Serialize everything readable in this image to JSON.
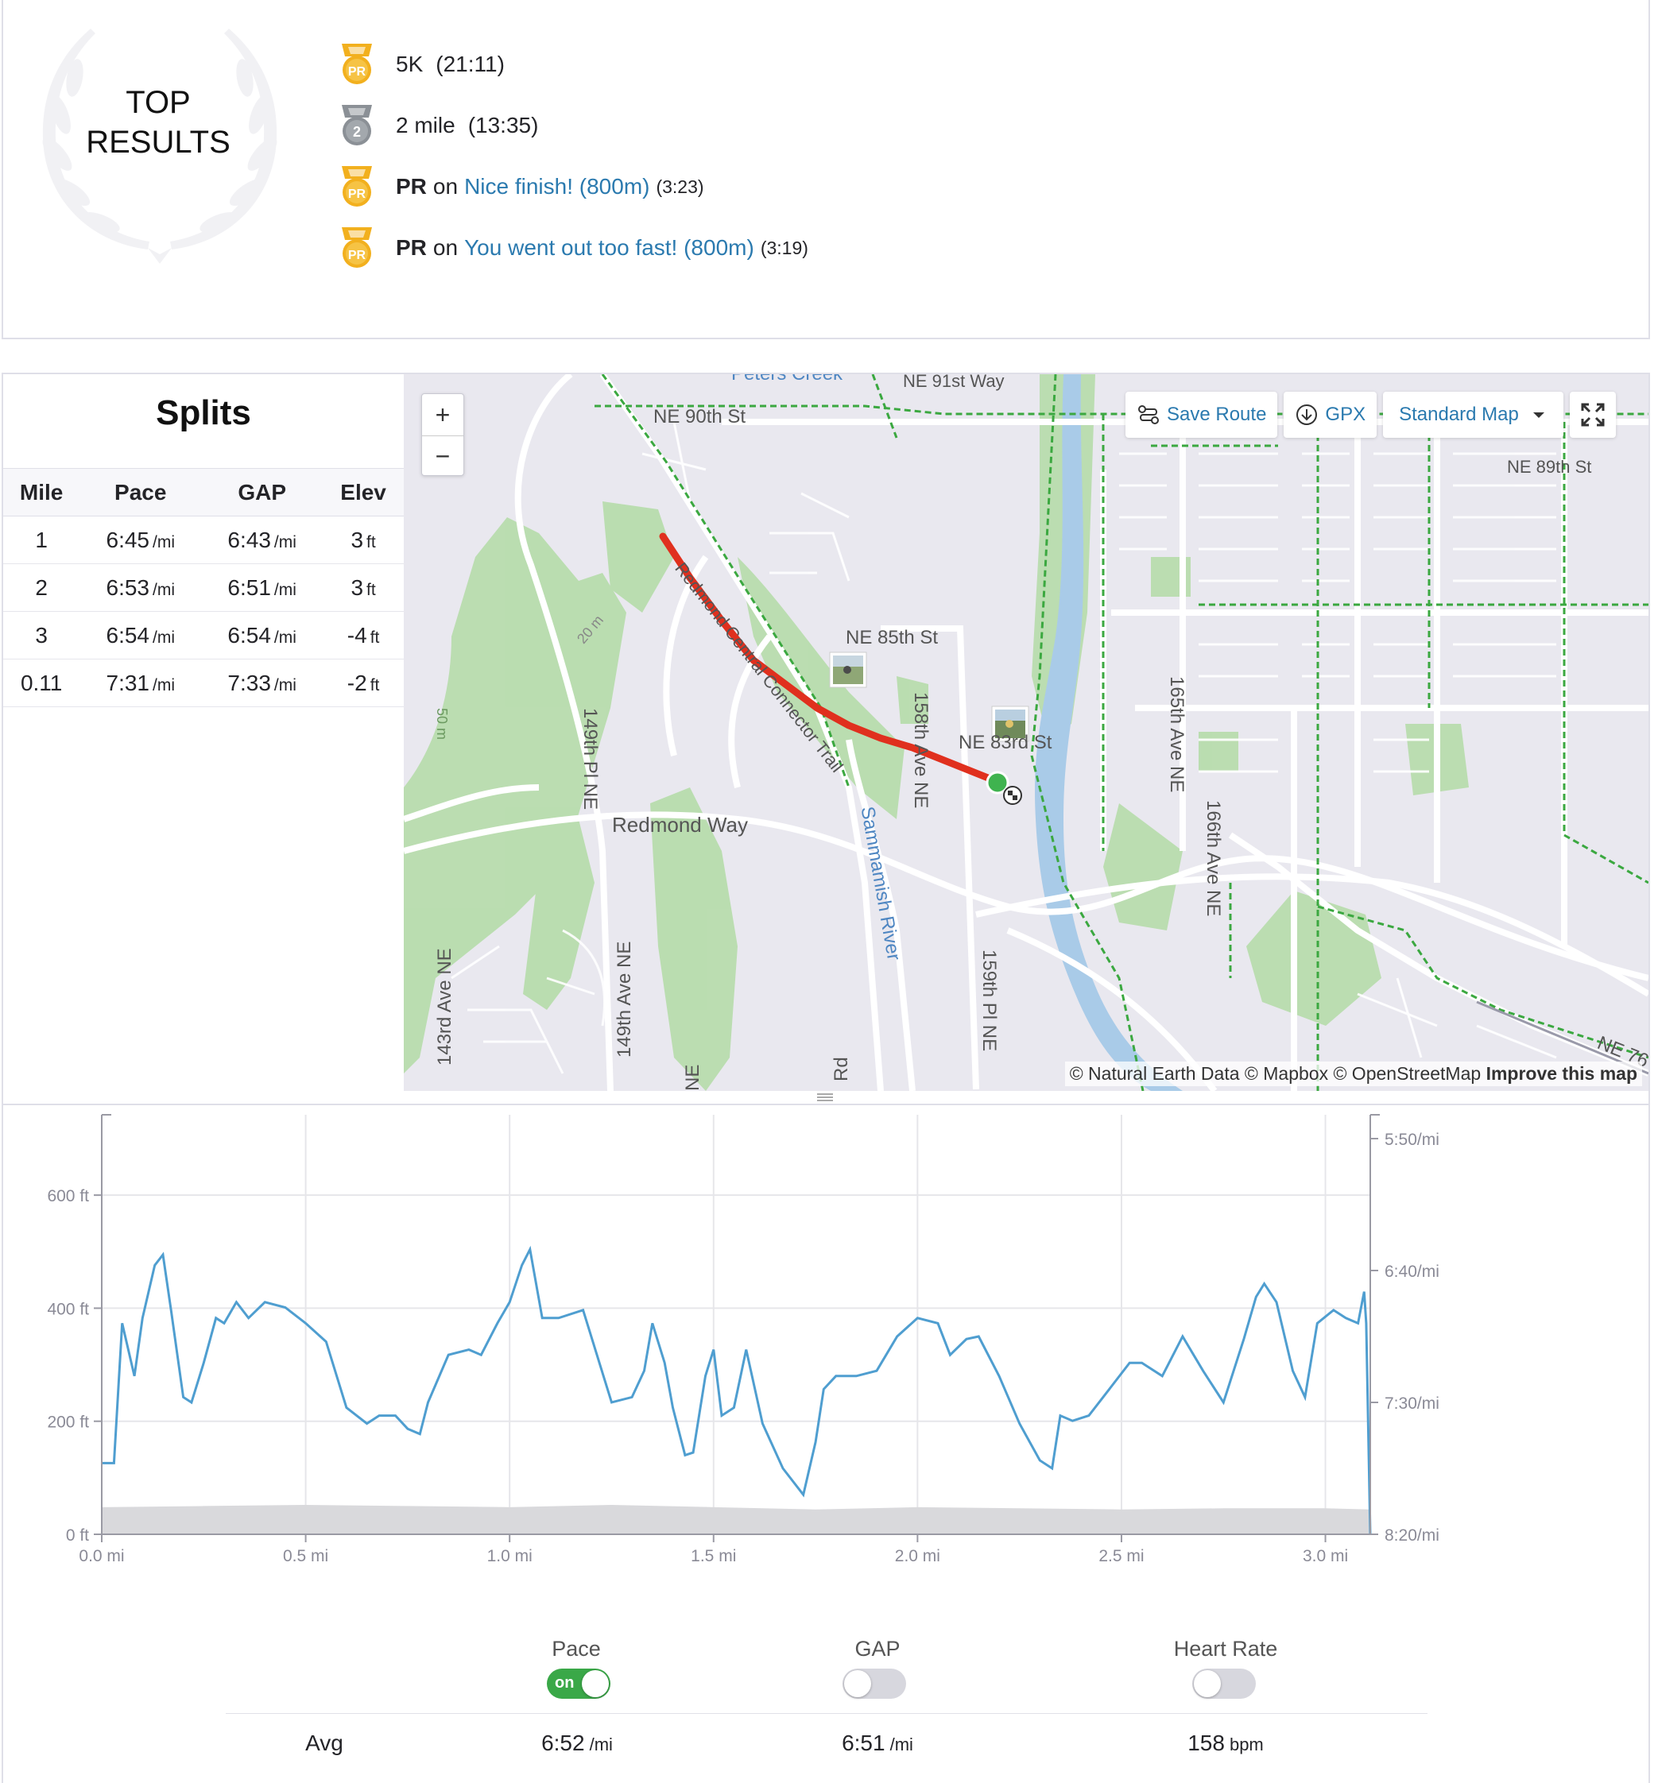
{
  "top_results": {
    "title_line1": "TOP",
    "title_line2": "RESULTS",
    "items": [
      {
        "medal": "pr-medal-icon",
        "name": "5K",
        "time": "(21:11)"
      },
      {
        "medal": "second-place-medal-icon",
        "name": "2 mile",
        "time": "(13:35)"
      },
      {
        "medal": "pr-medal-icon",
        "prefix": "PR",
        "on": "on",
        "segment": "Nice finish! (800m)",
        "time": "(3:23)"
      },
      {
        "medal": "pr-medal-icon",
        "prefix": "PR",
        "on": "on",
        "segment": "You went out too fast! (800m)",
        "time": "(3:19)"
      }
    ],
    "medal_text_pr": "PR",
    "medal_text_second": "2",
    "colors": {
      "pr_medal": "#f2b01e",
      "second_medal": "#8b9096",
      "link": "#2b7aaf"
    }
  },
  "splits": {
    "title": "Splits",
    "columns": [
      "Mile",
      "Pace",
      "GAP",
      "Elev"
    ],
    "rows": [
      {
        "mile": "1",
        "pace": "6:45",
        "pace_unit": "/mi",
        "gap": "6:43",
        "gap_unit": "/mi",
        "elev": "3",
        "elev_unit": "ft"
      },
      {
        "mile": "2",
        "pace": "6:53",
        "pace_unit": "/mi",
        "gap": "6:51",
        "gap_unit": "/mi",
        "elev": "3",
        "elev_unit": "ft"
      },
      {
        "mile": "3",
        "pace": "6:54",
        "pace_unit": "/mi",
        "gap": "6:54",
        "gap_unit": "/mi",
        "elev": "-4",
        "elev_unit": "ft"
      },
      {
        "mile": "0.11",
        "pace": "7:31",
        "pace_unit": "/mi",
        "gap": "7:33",
        "gap_unit": "/mi",
        "elev": "-2",
        "elev_unit": "ft"
      }
    ]
  },
  "map": {
    "zoom_in": "+",
    "zoom_out": "−",
    "save_route": "Save Route",
    "gpx": "GPX",
    "map_type": "Standard Map",
    "attribution": "© Natural Earth Data © Mapbox © OpenStreetMap",
    "improve": "Improve this map",
    "labels": {
      "ne90": "NE 90th St",
      "ne91": "NE 91st Way",
      "ne90b": "NE 90th St",
      "ne89": "NE 89th St",
      "ne85": "NE 85th St",
      "ne83": "NE 83rd St",
      "redmond": "Redmond Way",
      "pl149": "149th Pl NE",
      "ave158": "158th Ave NE",
      "ave165": "165th Ave NE",
      "ave166": "166th Ave NE",
      "ave143": "143rd Ave NE",
      "ave149": "149th Ave NE",
      "pl159": "159th Pl NE",
      "river": "Sammamish River",
      "trail": "Redmond Central Connector Trail",
      "ne76": "NE 76",
      "m50": "50 m",
      "m20": "20 m",
      "ne_stub": "NE",
      "rd_stub": "Rd",
      "creek": "Peters Creek"
    },
    "route_color": "#e0301e"
  },
  "chart": {
    "left_axis_ticks": [
      "600 ft",
      "400 ft",
      "200 ft",
      "0 ft"
    ],
    "right_axis_ticks": [
      "5:50/mi",
      "6:40/mi",
      "7:30/mi",
      "8:20/mi"
    ],
    "x_axis_ticks": [
      "0.0 mi",
      "0.5 mi",
      "1.0 mi",
      "1.5 mi",
      "2.0 mi",
      "2.5 mi",
      "3.0 mi"
    ],
    "pace_color": "#4f9ed0",
    "elevation_color": "#d9d9dc"
  },
  "chart_data": {
    "type": "line",
    "x_unit": "mi",
    "xlim": [
      0.0,
      3.11
    ],
    "ylim_elevation": [
      0,
      700
    ],
    "ylim_pace_sec_per_mi": [
      350,
      500
    ],
    "series": [
      {
        "name": "Pace",
        "axis": "right",
        "x": [
          0.0,
          0.03,
          0.05,
          0.08,
          0.1,
          0.13,
          0.15,
          0.17,
          0.2,
          0.22,
          0.25,
          0.28,
          0.3,
          0.33,
          0.36,
          0.4,
          0.45,
          0.5,
          0.55,
          0.6,
          0.65,
          0.68,
          0.72,
          0.75,
          0.78,
          0.8,
          0.85,
          0.9,
          0.93,
          0.97,
          1.0,
          1.03,
          1.05,
          1.08,
          1.12,
          1.18,
          1.25,
          1.3,
          1.33,
          1.35,
          1.38,
          1.4,
          1.43,
          1.45,
          1.48,
          1.5,
          1.52,
          1.55,
          1.58,
          1.62,
          1.67,
          1.72,
          1.75,
          1.77,
          1.8,
          1.85,
          1.9,
          1.95,
          2.0,
          2.05,
          2.08,
          2.12,
          2.15,
          2.2,
          2.25,
          2.3,
          2.33,
          2.35,
          2.38,
          2.42,
          2.47,
          2.52,
          2.55,
          2.6,
          2.65,
          2.7,
          2.75,
          2.8,
          2.83,
          2.85,
          2.88,
          2.92,
          2.95,
          2.98,
          3.02,
          3.05,
          3.08,
          3.095,
          3.1,
          3.11
        ],
        "y": [
          473,
          473,
          420,
          440,
          418,
          398,
          394,
          415,
          448,
          450,
          435,
          418,
          420,
          412,
          418,
          412,
          414,
          420,
          427,
          452,
          458,
          455,
          455,
          460,
          462,
          450,
          432,
          430,
          432,
          420,
          412,
          398,
          392,
          418,
          418,
          415,
          450,
          448,
          438,
          420,
          435,
          452,
          470,
          469,
          440,
          430,
          455,
          452,
          430,
          458,
          475,
          485,
          465,
          445,
          440,
          440,
          438,
          425,
          418,
          420,
          432,
          426,
          425,
          440,
          458,
          472,
          475,
          455,
          457,
          455,
          445,
          435,
          435,
          440,
          425,
          438,
          450,
          426,
          410,
          405,
          412,
          438,
          448,
          420,
          415,
          418,
          420,
          408,
          420,
          500
        ]
      },
      {
        "name": "Elevation",
        "axis": "left",
        "x": [
          0.0,
          0.25,
          0.5,
          0.75,
          1.0,
          1.25,
          1.5,
          1.75,
          2.0,
          2.25,
          2.5,
          2.75,
          3.0,
          3.11
        ],
        "y": [
          48,
          50,
          52,
          50,
          48,
          52,
          48,
          44,
          48,
          46,
          44,
          46,
          46,
          44
        ]
      }
    ]
  },
  "stats": {
    "pace_label": "Pace",
    "gap_label": "GAP",
    "hr_label": "Heart Rate",
    "toggle_on_text": "on",
    "pace_toggle": "on",
    "gap_toggle": "off",
    "hr_toggle": "off",
    "avg_label": "Avg",
    "avg_pace": "6:52",
    "avg_pace_unit": "/mi",
    "avg_gap": "6:51",
    "avg_gap_unit": "/mi",
    "avg_hr": "158",
    "avg_hr_unit": "bpm"
  }
}
